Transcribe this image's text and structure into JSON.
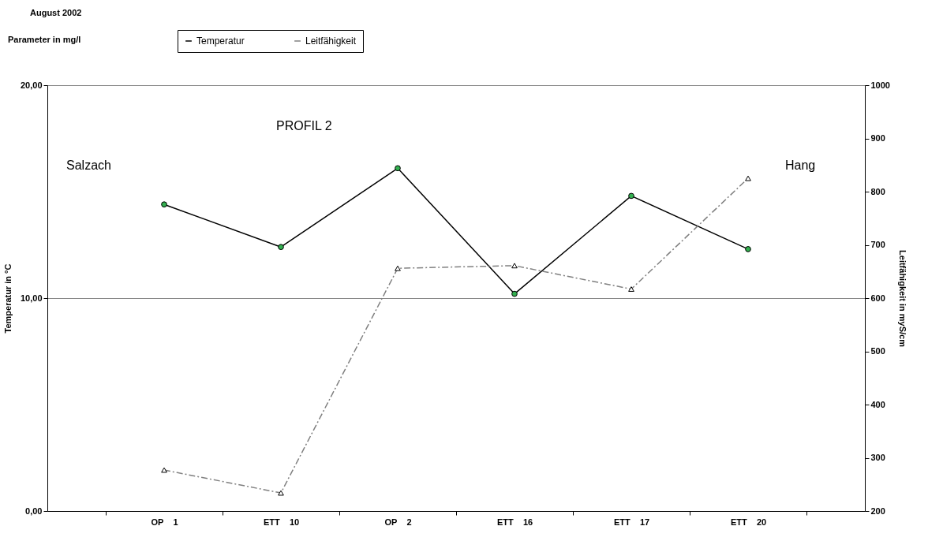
{
  "chart_data": {
    "type": "line",
    "annotations": [
      "August 2002",
      "Parameter in mg/l",
      "PROFIL 2",
      "Salzach",
      "Hang"
    ],
    "ylabel": "Temperatur in °C",
    "y2label": "Leitfähigkeit in myS/cm",
    "categories": [
      "OP__1",
      "ETT__10",
      "OP__2",
      "ETT__16",
      "ETT__17",
      "ETT__20"
    ],
    "series": [
      {
        "name": "Temperatur",
        "color": "#000000",
        "marker": "circle",
        "line_style": "solid",
        "values": [
          14.4,
          12.4,
          16.1,
          10.2,
          14.8,
          12.3
        ]
      },
      {
        "name": "Leitfähigkeit",
        "color": "#808080",
        "marker": "triangle",
        "line_style": "dashed",
        "axis": "y2",
        "values": [
          277,
          234,
          656,
          661,
          617,
          825
        ]
      }
    ],
    "ylim": [
      0,
      20
    ],
    "yticks": [
      {
        "value": 0,
        "label": "0,00"
      },
      {
        "value": 10,
        "label": "10,00"
      },
      {
        "value": 20,
        "label": "20,00"
      }
    ],
    "y2lim": [
      200,
      1000
    ],
    "y2ticks": [
      200,
      300,
      400,
      500,
      600,
      700,
      800,
      900,
      1000
    ],
    "grid": "y",
    "legend": "top"
  }
}
